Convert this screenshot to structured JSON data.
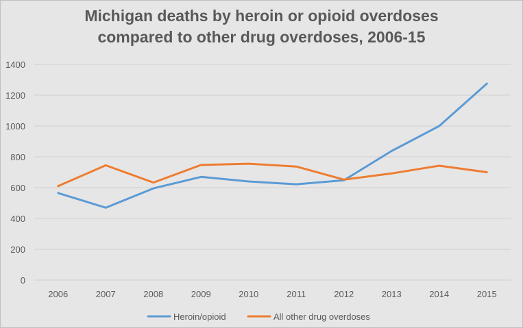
{
  "chart_data": {
    "type": "line",
    "title_lines": [
      "Michigan deaths by heroin or opioid overdoses",
      "compared to other drug overdoses, 2006-15"
    ],
    "xlabel": "",
    "ylabel": "",
    "x": [
      "2006",
      "2007",
      "2008",
      "2009",
      "2010",
      "2011",
      "2012",
      "2013",
      "2014",
      "2015"
    ],
    "ylim": [
      0,
      1400
    ],
    "yticks": [
      "0",
      "200",
      "400",
      "600",
      "800",
      "1000",
      "1200",
      "1400"
    ],
    "grid": true,
    "legend_position": "bottom",
    "series": [
      {
        "name": "Heroin/opioid",
        "color": "#5b9bd5",
        "values": [
          565,
          470,
          595,
          670,
          640,
          622,
          648,
          838,
          1000,
          1275
        ]
      },
      {
        "name": "All other drug overdoses",
        "color": "#ed7d31",
        "values": [
          610,
          745,
          633,
          747,
          755,
          737,
          652,
          692,
          742,
          700
        ]
      }
    ]
  }
}
